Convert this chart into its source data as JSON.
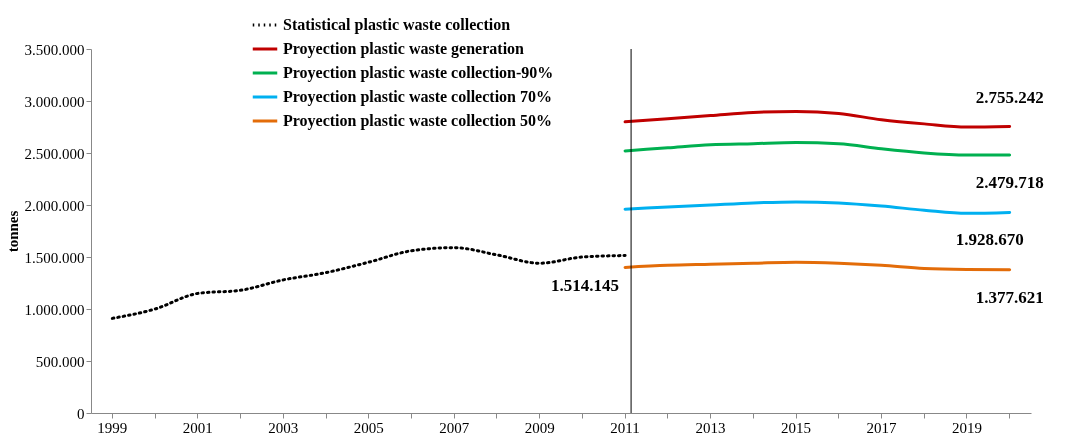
{
  "chart_data": {
    "type": "line",
    "categories": [
      "1999",
      null,
      "2001",
      null,
      "2003",
      null,
      "2005",
      null,
      "2007",
      null,
      "2009",
      null,
      "2011",
      null,
      "2013",
      null,
      "2015",
      null,
      "2017",
      null,
      "2019",
      null
    ],
    "series": [
      {
        "name": "Statistical plastic waste collection",
        "color": "#000000",
        "line_style": "dotted",
        "values": [
          910000,
          1000000,
          1150000,
          1180000,
          1280000,
          1350000,
          1450000,
          1560000,
          1590000,
          1520000,
          1440000,
          1500000,
          1514145,
          null,
          null,
          null,
          null,
          null,
          null,
          null,
          null,
          null
        ]
      },
      {
        "name": "Proyection plastic waste generation",
        "color": "#c00000",
        "line_style": "solid",
        "values": [
          null,
          null,
          null,
          null,
          null,
          null,
          null,
          null,
          null,
          null,
          null,
          null,
          2800000,
          2830000,
          2860000,
          2890000,
          2900000,
          2880000,
          2820000,
          2780000,
          2750000,
          2755242
        ]
      },
      {
        "name": "Proyection plastic waste collection-90%",
        "color": "#00b050",
        "line_style": "solid",
        "values": [
          null,
          null,
          null,
          null,
          null,
          null,
          null,
          null,
          null,
          null,
          null,
          null,
          2520000,
          2550000,
          2580000,
          2590000,
          2600000,
          2590000,
          2540000,
          2500000,
          2480000,
          2479718
        ]
      },
      {
        "name": "Proyection plastic waste collection 70%",
        "color": "#00b0f0",
        "line_style": "solid",
        "values": [
          null,
          null,
          null,
          null,
          null,
          null,
          null,
          null,
          null,
          null,
          null,
          null,
          1960000,
          1980000,
          2000000,
          2020000,
          2030000,
          2020000,
          1990000,
          1950000,
          1920000,
          1928670
        ]
      },
      {
        "name": "Proyection plastic waste collection 50%",
        "color": "#e36c09",
        "line_style": "solid",
        "values": [
          null,
          null,
          null,
          null,
          null,
          null,
          null,
          null,
          null,
          null,
          null,
          null,
          1400000,
          1420000,
          1430000,
          1440000,
          1450000,
          1440000,
          1420000,
          1390000,
          1380000,
          1377621
        ]
      }
    ],
    "ylabel": "tonnes",
    "ylim": [
      0,
      3500000
    ],
    "yticks": [
      {
        "value": 0,
        "label": "0"
      },
      {
        "value": 500000,
        "label": "500.000"
      },
      {
        "value": 1000000,
        "label": "1.000.000"
      },
      {
        "value": 1500000,
        "label": "1.500.000"
      },
      {
        "value": 2000000,
        "label": "2.000.000"
      },
      {
        "value": 2500000,
        "label": "2.500.000"
      },
      {
        "value": 3000000,
        "label": "3.000.000"
      },
      {
        "value": 3500000,
        "label": "3.500.000"
      }
    ],
    "ref_lines": [
      {
        "axis": "x",
        "value": "2011",
        "color": "#000000"
      }
    ],
    "annotations": [
      {
        "text": "1.514.145",
        "x": "2011",
        "y": 1514145
      },
      {
        "text": "2.755.242",
        "y": 2755242
      },
      {
        "text": "2.479.718",
        "y": 2479718
      },
      {
        "text": "1.928.670",
        "y": 1928670
      },
      {
        "text": "1.377.621",
        "y": 1377621
      }
    ],
    "grid": false,
    "legend": "top left",
    "marker": "none"
  }
}
